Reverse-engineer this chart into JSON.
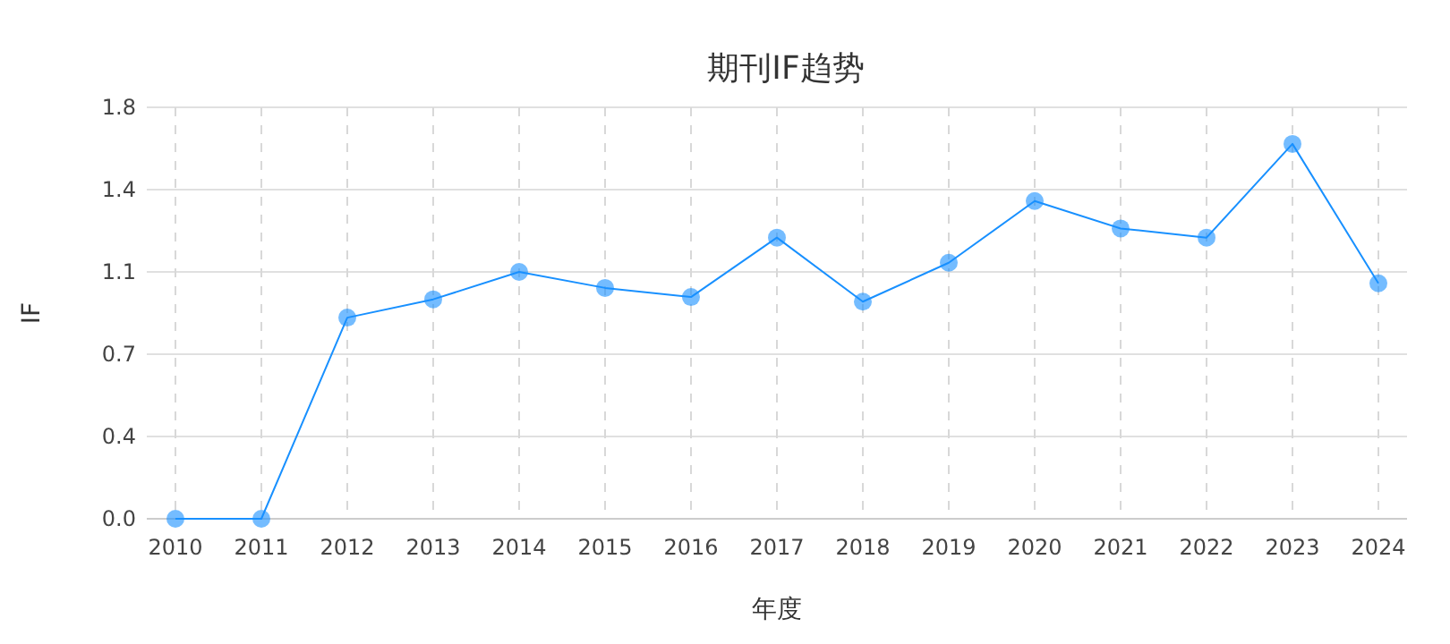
{
  "chart_data": {
    "type": "line",
    "title": "期刊IF趋势",
    "xlabel": "年度",
    "ylabel": "IF",
    "categories": [
      "2010",
      "2011",
      "2012",
      "2013",
      "2014",
      "2015",
      "2016",
      "2017",
      "2018",
      "2019",
      "2020",
      "2021",
      "2022",
      "2023",
      "2024"
    ],
    "series": [
      {
        "color": "#1890ff",
        "values": [
          0,
          0,
          0.88,
          0.96,
          1.08,
          1.01,
          0.97,
          1.23,
          0.95,
          1.12,
          1.39,
          1.27,
          1.23,
          1.64,
          1.03
        ]
      }
    ],
    "ylim": [
      0,
      1.8
    ],
    "yticks": [
      {
        "value": 0,
        "label": "0.0"
      },
      {
        "value": 0.36,
        "label": "0.4"
      },
      {
        "value": 0.72,
        "label": "0.7"
      },
      {
        "value": 1.08,
        "label": "1.1"
      },
      {
        "value": 1.44,
        "label": "1.4"
      },
      {
        "value": 1.8,
        "label": "1.8"
      }
    ],
    "grid": true,
    "marker": "circle"
  }
}
